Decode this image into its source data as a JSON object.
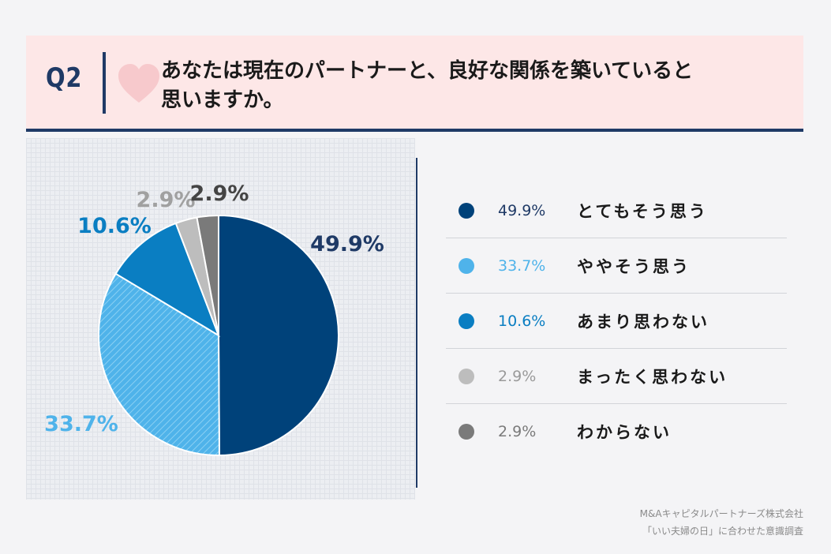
{
  "question": {
    "label": "Q2",
    "line1": "あなたは現在のパートナーと、良好な関係を築いていると",
    "line2": "思いますか。"
  },
  "colors": {
    "navy": "#00427a",
    "light_blue": "#4fb3ea",
    "mid_blue": "#0a7ec2",
    "light_gray": "#bdbdbd",
    "dark_gray": "#7a7a7a"
  },
  "chart_data": {
    "type": "pie",
    "title": "あなたは現在のパートナーと、良好な関係を築いていると思いますか。",
    "categories": [
      "とてもそう思う",
      "ややそう思う",
      "あまり思わない",
      "まったく思わない",
      "わからない"
    ],
    "values": [
      49.9,
      33.7,
      10.6,
      2.9,
      2.9
    ],
    "data_labels": [
      "49.9%",
      "33.7%",
      "10.6%",
      "2.9%",
      "2.9%"
    ],
    "colors": [
      "#00427a",
      "#4fb3ea",
      "#0a7ec2",
      "#bdbdbd",
      "#7a7a7a"
    ],
    "label_colors": [
      "#1f3a66",
      "#4fb3ea",
      "#0a7ec2",
      "#a0a0a0",
      "#444444"
    ],
    "legend": "right"
  },
  "legend": [
    {
      "pct": "49.9%",
      "label": "とてもそう思う"
    },
    {
      "pct": "33.7%",
      "label": "ややそう思う"
    },
    {
      "pct": "10.6%",
      "label": "あまり思わない"
    },
    {
      "pct": "2.9%",
      "label": "まったく思わない"
    },
    {
      "pct": "2.9%",
      "label": "わからない"
    }
  ],
  "source": {
    "company": "M&Aキャピタルパートナーズ株式会社",
    "survey": "「いい夫婦の日」に合わせた意識調査"
  }
}
